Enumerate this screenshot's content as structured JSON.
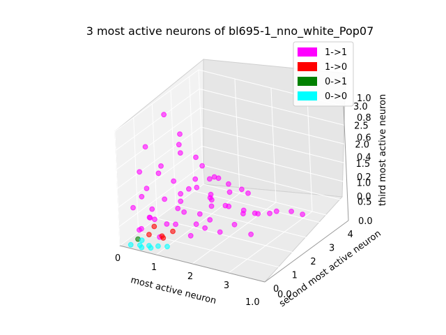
{
  "chart_data": {
    "type": "scatter",
    "projection": "3d",
    "title": "3 most active neurons of bl695-1_nno_white_Pop07",
    "xlabel": "most active neuron",
    "ylabel": "second most active neuron",
    "zlabel": "third most active neuron",
    "xlim": [
      0,
      4
    ],
    "ylim": [
      0,
      4.5
    ],
    "zlim": [
      0,
      3.0
    ],
    "x_ticks": [
      "0",
      "1",
      "2",
      "3"
    ],
    "y_ticks": [
      "0",
      "1",
      "2",
      "3",
      "4"
    ],
    "z_ticks": [
      "0.0",
      "0.5",
      "1.0",
      "1.5",
      "2.0",
      "2.5",
      "3.0"
    ],
    "overlay_ticks": {
      "x": [
        "1.0"
      ],
      "y": [
        "0.0"
      ],
      "z": [
        "0.0",
        "0.2",
        "0.4",
        "0.6",
        "0.8",
        "1.0"
      ]
    },
    "grid": true,
    "legend_position": "top-right",
    "series": [
      {
        "name": "1->1",
        "color": "#ff00ff",
        "points": [
          [
            0.3,
            1.2,
            0.6
          ],
          [
            0.5,
            1.5,
            0.8
          ],
          [
            0.7,
            1.8,
            0.5
          ],
          [
            1.0,
            1.4,
            0.9
          ],
          [
            1.2,
            2.0,
            0.4
          ],
          [
            0.4,
            2.2,
            1.0
          ],
          [
            0.6,
            2.6,
            0.7
          ],
          [
            0.9,
            2.4,
            1.1
          ],
          [
            1.1,
            2.8,
            0.6
          ],
          [
            1.4,
            2.2,
            0.8
          ],
          [
            1.6,
            2.6,
            0.5
          ],
          [
            0.2,
            1.8,
            1.3
          ],
          [
            0.8,
            1.0,
            0.4
          ],
          [
            1.3,
            1.6,
            0.3
          ],
          [
            1.5,
            3.0,
            0.9
          ],
          [
            1.8,
            2.4,
            0.6
          ],
          [
            2.0,
            2.8,
            0.4
          ],
          [
            0.5,
            3.2,
            0.5
          ],
          [
            0.9,
            3.4,
            0.8
          ],
          [
            1.2,
            3.6,
            0.4
          ],
          [
            1.7,
            3.3,
            0.7
          ],
          [
            2.2,
            3.0,
            0.3
          ],
          [
            2.5,
            2.6,
            0.5
          ],
          [
            0.1,
            1.0,
            1.6
          ],
          [
            0.3,
            2.8,
            1.5
          ],
          [
            0.6,
            1.2,
            1.8
          ],
          [
            0.7,
            2.0,
            2.1
          ],
          [
            0.4,
            0.8,
            2.4
          ],
          [
            0.2,
            3.0,
            1.9
          ],
          [
            1.0,
            2.6,
            1.4
          ],
          [
            2.4,
            3.4,
            0.2
          ],
          [
            2.7,
            3.2,
            0.4
          ],
          [
            2.9,
            3.6,
            0.3
          ],
          [
            3.1,
            3.8,
            0.2
          ],
          [
            0.3,
            0.6,
            0.3
          ],
          [
            0.5,
            0.7,
            0.6
          ],
          [
            0.8,
            0.6,
            0.2
          ],
          [
            1.1,
            0.9,
            0.5
          ],
          [
            1.4,
            1.1,
            0.2
          ],
          [
            1.7,
            1.3,
            0.4
          ],
          [
            1.9,
            1.7,
            0.2
          ],
          [
            2.1,
            2.1,
            0.3
          ],
          [
            0.2,
            0.4,
            0.9
          ],
          [
            0.4,
            0.5,
            1.2
          ],
          [
            0.6,
            0.4,
            1.5
          ],
          [
            0.1,
            2.4,
            2.6
          ],
          [
            0.9,
            1.6,
            1.0
          ],
          [
            1.3,
            2.4,
            1.2
          ],
          [
            1.6,
            1.9,
            0.9
          ],
          [
            0.3,
            3.6,
            1.1
          ],
          [
            0.8,
            3.8,
            0.6
          ],
          [
            1.5,
            4.0,
            0.3
          ],
          [
            2.3,
            2.2,
            0.6
          ],
          [
            2.6,
            2.0,
            0.2
          ],
          [
            1.9,
            1.2,
            0.7
          ],
          [
            0.2,
            1.5,
            0.2
          ],
          [
            0.6,
            2.3,
            0.2
          ],
          [
            1.0,
            3.0,
            0.2
          ],
          [
            0.4,
            0.3,
            0.4
          ],
          [
            0.7,
            0.3,
            0.8
          ]
        ]
      },
      {
        "name": "1->0",
        "color": "#ff0000",
        "points": [
          [
            0.4,
            0.8,
            0.1
          ],
          [
            0.6,
            1.1,
            0.0
          ],
          [
            0.8,
            1.3,
            0.1
          ],
          [
            0.5,
            0.9,
            0.3
          ],
          [
            0.9,
            0.6,
            0.2
          ]
        ]
      },
      {
        "name": "0->1",
        "color": "#008000",
        "points": [
          [
            0.3,
            0.4,
            0.1
          ]
        ]
      },
      {
        "name": "0->0",
        "color": "#00ffff",
        "points": [
          [
            0.2,
            0.2,
            0.0
          ],
          [
            0.4,
            0.3,
            0.0
          ],
          [
            0.6,
            0.4,
            0.0
          ],
          [
            0.8,
            0.5,
            0.0
          ],
          [
            0.3,
            0.6,
            0.0
          ],
          [
            0.5,
            0.2,
            0.0
          ],
          [
            0.7,
            0.3,
            0.0
          ],
          [
            1.0,
            0.6,
            0.0
          ]
        ]
      }
    ]
  }
}
